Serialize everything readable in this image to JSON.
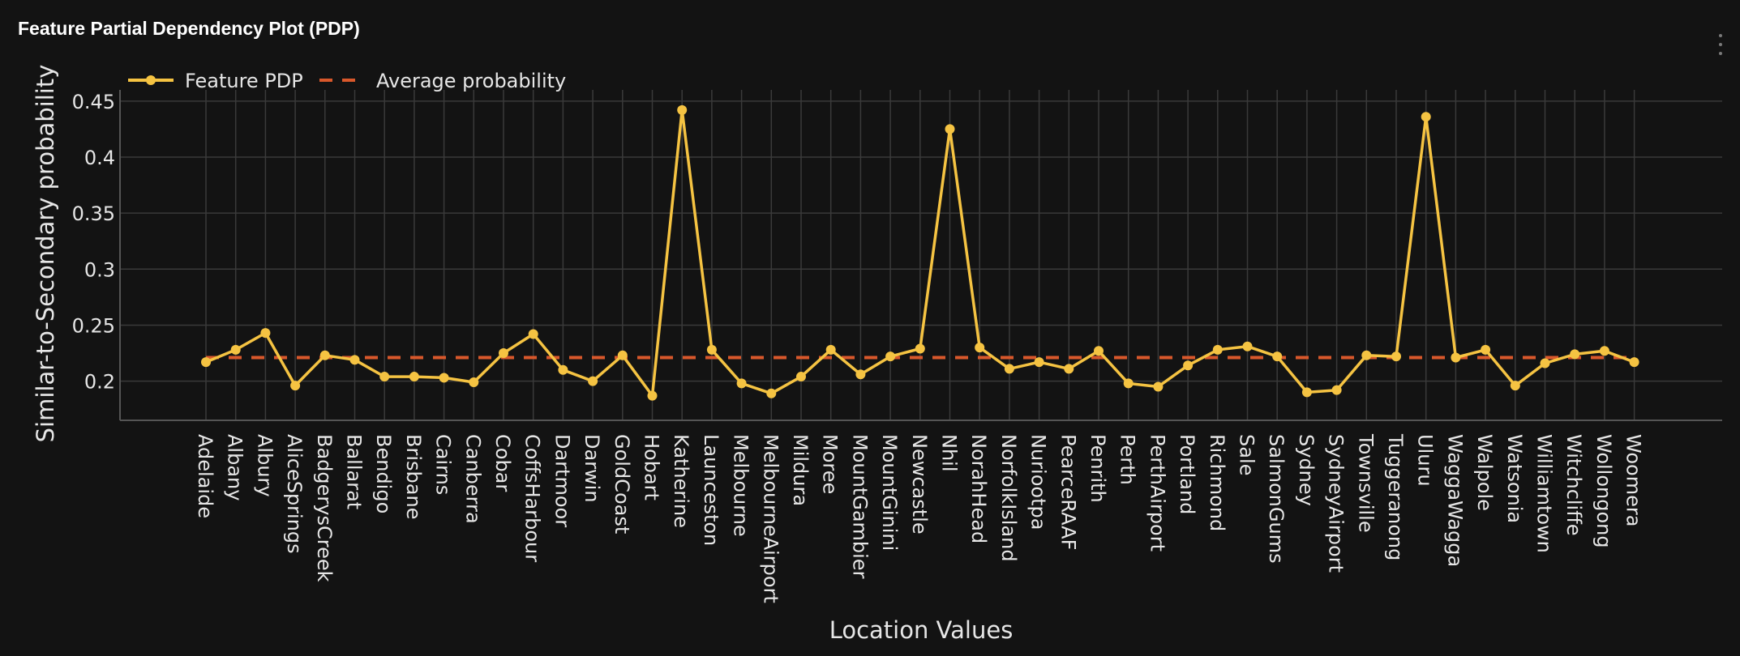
{
  "panel": {
    "title": "Feature Partial Dependency Plot (PDP)",
    "menu_icon": "vertical-dots-icon"
  },
  "colors": {
    "background": "#131313",
    "grid": "#3a3a3a",
    "axis": "#555555",
    "pdp_line": "#f5c342",
    "average_line": "#d9582b",
    "text": "#e6e6e6"
  },
  "chart_data": {
    "type": "line",
    "title": "",
    "xlabel": "Location Values",
    "ylabel": "Similar-to-Secondary probability",
    "ylim": [
      0.165,
      0.46
    ],
    "yticks": [
      0.2,
      0.25,
      0.3,
      0.35,
      0.4,
      0.45
    ],
    "ytick_labels": [
      "0.2",
      "0.25",
      "0.3",
      "0.35",
      "0.4",
      "0.45"
    ],
    "grid": true,
    "legend_position": "top-left",
    "categories": [
      "Adelaide",
      "Albany",
      "Albury",
      "AliceSprings",
      "BadgerysCreek",
      "Ballarat",
      "Bendigo",
      "Brisbane",
      "Cairns",
      "Canberra",
      "Cobar",
      "CoffsHarbour",
      "Dartmoor",
      "Darwin",
      "GoldCoast",
      "Hobart",
      "Katherine",
      "Launceston",
      "Melbourne",
      "MelbourneAirport",
      "Mildura",
      "Moree",
      "MountGambier",
      "MountGinini",
      "Newcastle",
      "Nhil",
      "NorahHead",
      "NorfolkIsland",
      "Nuriootpa",
      "PearceRAAF",
      "Penrith",
      "Perth",
      "PerthAirport",
      "Portland",
      "Richmond",
      "Sale",
      "SalmonGums",
      "Sydney",
      "SydneyAirport",
      "Townsville",
      "Tuggeranong",
      "Uluru",
      "WaggaWagga",
      "Walpole",
      "Watsonia",
      "Williamtown",
      "Witchcliffe",
      "Wollongong",
      "Woomera"
    ],
    "series": [
      {
        "name": "Feature PDP",
        "style": "line-markers",
        "values": [
          0.217,
          0.228,
          0.243,
          0.196,
          0.223,
          0.219,
          0.204,
          0.204,
          0.203,
          0.199,
          0.225,
          0.242,
          0.21,
          0.2,
          0.223,
          0.187,
          0.442,
          0.228,
          0.198,
          0.189,
          0.204,
          0.228,
          0.206,
          0.222,
          0.229,
          0.425,
          0.23,
          0.211,
          0.217,
          0.211,
          0.227,
          0.198,
          0.195,
          0.214,
          0.228,
          0.231,
          0.222,
          0.19,
          0.192,
          0.223,
          0.222,
          0.436,
          0.221,
          0.228,
          0.196,
          0.216,
          0.224,
          0.227,
          0.217
        ]
      },
      {
        "name": "Average probability",
        "style": "dashed",
        "value": 0.221
      }
    ]
  }
}
